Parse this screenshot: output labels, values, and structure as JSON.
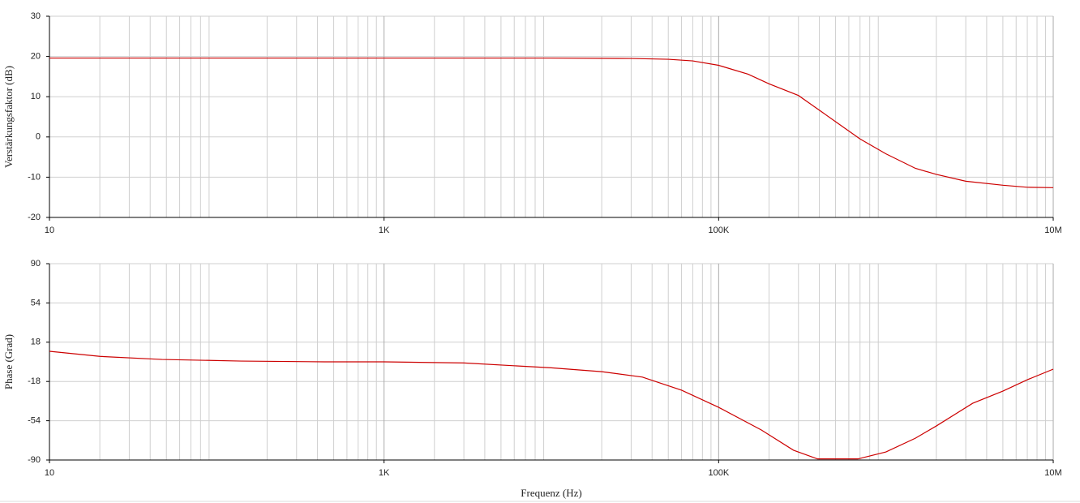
{
  "chart_data": [
    {
      "type": "line",
      "ylabel": "Verstärkungsfaktor (dB)",
      "x": [
        10,
        100,
        1000,
        10000,
        30000,
        50000,
        70000,
        100000,
        150000,
        200000,
        300000,
        500000,
        700000,
        1000000,
        1500000,
        2000000,
        3000000,
        5000000,
        7000000,
        10000000
      ],
      "values": [
        19.6,
        19.6,
        19.6,
        19.6,
        19.5,
        19.3,
        18.9,
        17.8,
        15.6,
        13.2,
        10.3,
        3.8,
        -0.5,
        -4.2,
        -7.8,
        -9.3,
        -11,
        -12,
        -12.5,
        -12.6
      ],
      "color": "#cc0000",
      "log_x": true,
      "grid": true,
      "minor_grid": true,
      "xlim": [
        10,
        10000000
      ],
      "xticks": [
        10,
        {
          "value": 1000,
          "label": "1K"
        },
        {
          "value": 100000,
          "label": "100K"
        },
        {
          "value": 10000000,
          "label": "10M"
        }
      ],
      "ylim": [
        -20,
        30
      ],
      "yticks": [
        30,
        20,
        10,
        0,
        -10,
        -20
      ]
    },
    {
      "type": "line",
      "ylabel": "Phase (Grad)",
      "xlabel": "Frequenz (Hz)",
      "x": [
        10,
        20,
        47,
        140,
        440,
        1000,
        3000,
        10000,
        20000,
        35000,
        60000,
        100000,
        180000,
        280000,
        390000,
        680000,
        1000000,
        1500000,
        2000000,
        3300000,
        5000000,
        7000000,
        10000000
      ],
      "values": [
        9.7,
        5,
        2.2,
        0.7,
        0,
        0,
        -1,
        -5.5,
        -9,
        -14,
        -26,
        -41.7,
        -62.5,
        -81,
        -89,
        -89,
        -82.6,
        -70,
        -58.8,
        -38,
        -26.8,
        -16.4,
        -6.7
      ],
      "color": "#cc0000",
      "log_x": true,
      "grid": true,
      "minor_grid": true,
      "xlim": [
        10,
        10000000
      ],
      "xticks": [
        10,
        {
          "value": 1000,
          "label": "1K"
        },
        {
          "value": 100000,
          "label": "100K"
        },
        {
          "value": 10000000,
          "label": "10M"
        }
      ],
      "ylim": [
        -90,
        90
      ],
      "yticks": [
        90,
        54,
        18,
        -18,
        -54,
        -90
      ]
    }
  ]
}
